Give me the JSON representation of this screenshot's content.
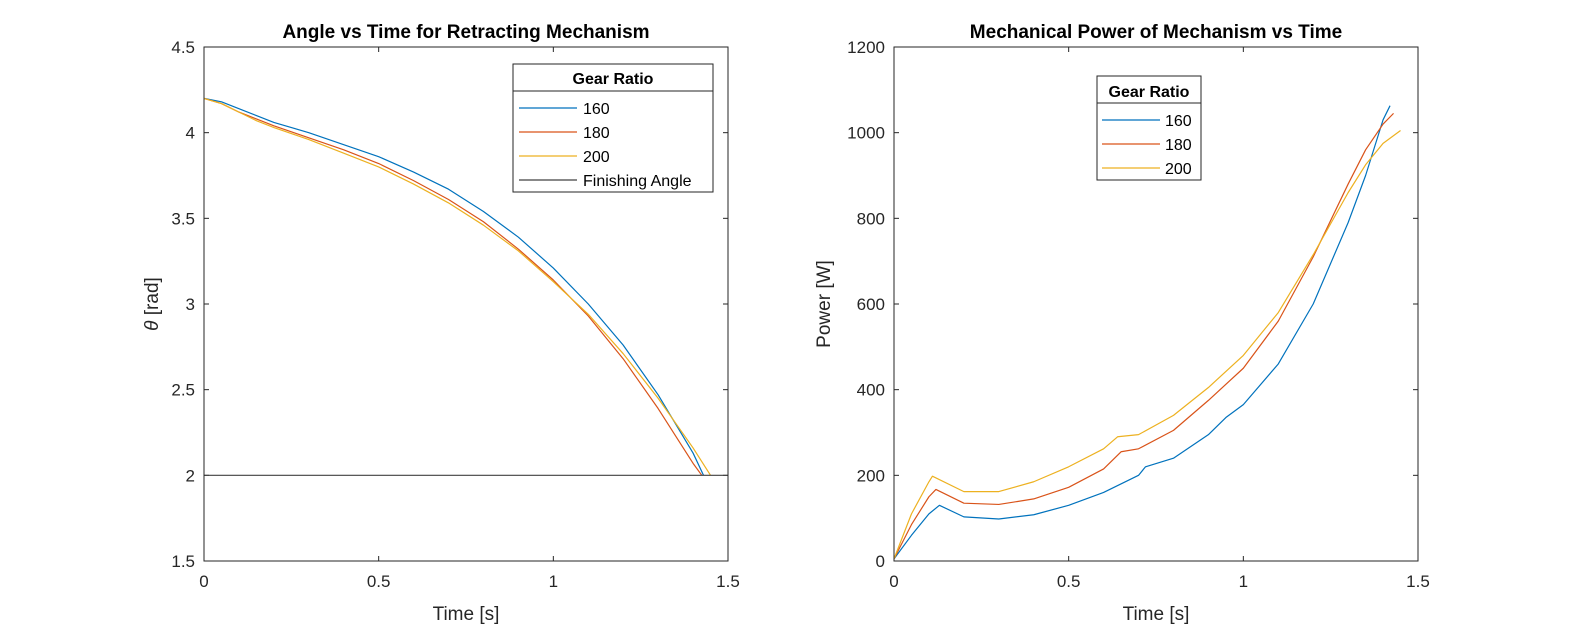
{
  "chart_data": [
    {
      "type": "line",
      "title": "Angle vs Time for Retracting Mechanism",
      "xlabel": "Time [s]",
      "ylabel_symbol": "θ",
      "ylabel_text": " [rad]",
      "xlim": [
        0,
        1.5
      ],
      "ylim": [
        1.5,
        4.5
      ],
      "xticks": [
        "0",
        "0.5",
        "1",
        "1.5"
      ],
      "yticks": [
        "1.5",
        "2",
        "2.5",
        "3",
        "3.5",
        "4",
        "4.5"
      ],
      "grid": false,
      "legend": {
        "title": "Gear Ratio",
        "placement": "top-right",
        "entries": [
          "160",
          "180",
          "200",
          "Finishing Angle"
        ]
      },
      "series": [
        {
          "name": "160",
          "color": "#0072BD",
          "x": [
            0,
            0.05,
            0.1,
            0.15,
            0.2,
            0.3,
            0.4,
            0.5,
            0.6,
            0.7,
            0.8,
            0.9,
            1.0,
            1.1,
            1.2,
            1.3,
            1.4,
            1.43
          ],
          "y": [
            4.2,
            4.18,
            4.14,
            4.1,
            4.06,
            4.0,
            3.93,
            3.86,
            3.77,
            3.67,
            3.54,
            3.39,
            3.21,
            3.0,
            2.76,
            2.47,
            2.13,
            2.0
          ]
        },
        {
          "name": "180",
          "color": "#D95319",
          "x": [
            0,
            0.05,
            0.1,
            0.15,
            0.2,
            0.3,
            0.4,
            0.5,
            0.6,
            0.7,
            0.8,
            0.9,
            1.0,
            1.1,
            1.2,
            1.3,
            1.4,
            1.425
          ],
          "y": [
            4.2,
            4.17,
            4.12,
            4.08,
            4.04,
            3.97,
            3.9,
            3.82,
            3.72,
            3.61,
            3.48,
            3.32,
            3.14,
            2.93,
            2.68,
            2.39,
            2.07,
            2.0
          ]
        },
        {
          "name": "200",
          "color": "#EDB120",
          "x": [
            0,
            0.05,
            0.1,
            0.15,
            0.2,
            0.3,
            0.4,
            0.5,
            0.6,
            0.7,
            0.8,
            0.9,
            1.0,
            1.1,
            1.2,
            1.3,
            1.4,
            1.45
          ],
          "y": [
            4.2,
            4.17,
            4.12,
            4.07,
            4.03,
            3.96,
            3.88,
            3.8,
            3.7,
            3.59,
            3.46,
            3.31,
            3.13,
            2.94,
            2.71,
            2.45,
            2.16,
            2.0
          ]
        },
        {
          "name": "Finishing Angle",
          "color": "#404040",
          "x": [
            0,
            1.5
          ],
          "y": [
            2.0,
            2.0
          ]
        }
      ]
    },
    {
      "type": "line",
      "title": "Mechanical Power of Mechanism vs Time",
      "xlabel": "Time [s]",
      "ylabel": "Power [W]",
      "xlim": [
        0,
        1.5
      ],
      "ylim": [
        0,
        1200
      ],
      "xticks": [
        "0",
        "0.5",
        "1",
        "1.5"
      ],
      "yticks": [
        "0",
        "200",
        "400",
        "600",
        "800",
        "1000",
        "1200"
      ],
      "grid": false,
      "legend": {
        "title": "Gear Ratio",
        "placement": "top-center",
        "entries": [
          "160",
          "180",
          "200"
        ]
      },
      "series": [
        {
          "name": "160",
          "color": "#0072BD",
          "x": [
            0,
            0.05,
            0.1,
            0.13,
            0.2,
            0.3,
            0.4,
            0.5,
            0.6,
            0.7,
            0.72,
            0.8,
            0.9,
            0.95,
            1.0,
            1.1,
            1.2,
            1.3,
            1.35,
            1.4,
            1.42
          ],
          "y": [
            5,
            60,
            110,
            130,
            103,
            98,
            108,
            130,
            160,
            200,
            220,
            240,
            295,
            335,
            365,
            460,
            600,
            790,
            900,
            1030,
            1063
          ]
        },
        {
          "name": "180",
          "color": "#D95319",
          "x": [
            0,
            0.05,
            0.1,
            0.12,
            0.2,
            0.3,
            0.4,
            0.5,
            0.6,
            0.65,
            0.7,
            0.8,
            0.9,
            1.0,
            1.1,
            1.2,
            1.3,
            1.35,
            1.4,
            1.43
          ],
          "y": [
            5,
            85,
            150,
            167,
            135,
            132,
            145,
            172,
            215,
            255,
            262,
            305,
            375,
            450,
            560,
            710,
            880,
            960,
            1020,
            1045
          ]
        },
        {
          "name": "200",
          "color": "#EDB120",
          "x": [
            0,
            0.05,
            0.1,
            0.11,
            0.2,
            0.3,
            0.4,
            0.5,
            0.6,
            0.64,
            0.7,
            0.8,
            0.9,
            1.0,
            1.1,
            1.2,
            1.3,
            1.35,
            1.4,
            1.45
          ],
          "y": [
            5,
            110,
            185,
            198,
            162,
            162,
            185,
            220,
            262,
            290,
            295,
            340,
            405,
            480,
            580,
            715,
            860,
            925,
            975,
            1005
          ]
        }
      ]
    }
  ]
}
